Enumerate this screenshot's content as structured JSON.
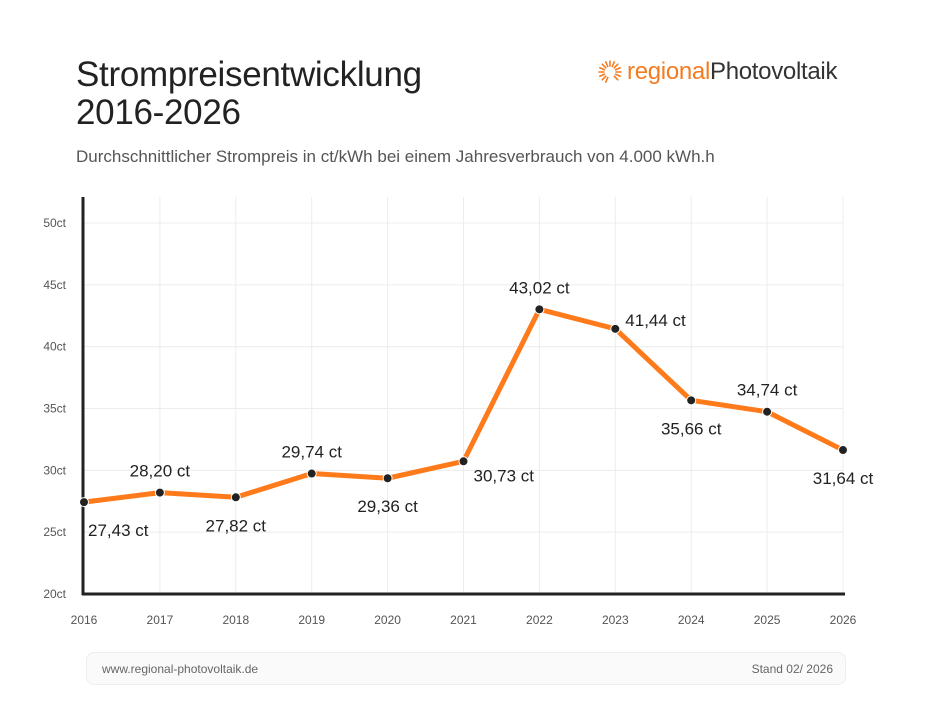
{
  "header": {
    "title_line1": "Strompreisentwicklung",
    "title_line2": "2016-2026",
    "subtitle": "Durchschnittlicher Strompreis in ct/kWh bei einem Jahresverbrauch von 4.000 kWh.h"
  },
  "logo": {
    "part1": "regional",
    "part2": "Photovoltaik",
    "accent": "#f47c20"
  },
  "chart_data": {
    "type": "line",
    "x": [
      "2016",
      "2017",
      "2018",
      "2019",
      "2020",
      "2021",
      "2022",
      "2023",
      "2024",
      "2025",
      "2026"
    ],
    "series": [
      {
        "values": [
          27.43,
          28.2,
          27.82,
          29.74,
          29.36,
          30.73,
          43.02,
          41.44,
          35.66,
          34.74,
          31.64
        ],
        "color": "#ff7a1a"
      }
    ],
    "data_labels": [
      "27,43 ct",
      "28,20 ct",
      "27,82 ct",
      "29,74 ct",
      "29,36 ct",
      "30,73 ct",
      "43,02 ct",
      "41,44 ct",
      "35,66 ct",
      "34,74 ct",
      "31,64 ct"
    ],
    "yticks": [
      20,
      25,
      30,
      35,
      40,
      45,
      50
    ],
    "ytick_labels": [
      "20ct",
      "25ct",
      "30ct",
      "35ct",
      "40ct",
      "45ct",
      "50ct"
    ],
    "ylim": [
      20,
      50
    ],
    "grid": true,
    "legend": "none"
  },
  "footer": {
    "url": "www.regional-photovoltaik.de",
    "stand": "Stand 02/ 2026"
  }
}
